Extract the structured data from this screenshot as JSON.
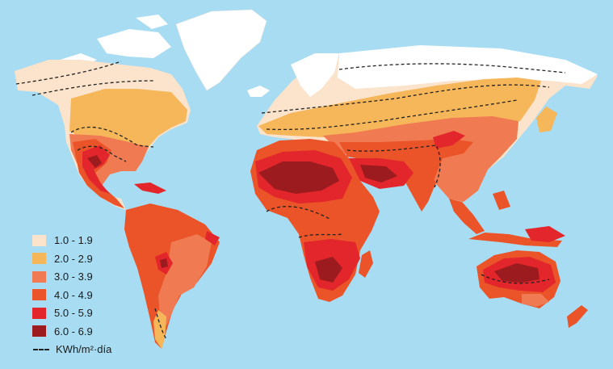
{
  "colors": {
    "ocean": "#a8dcf2",
    "land_outline": "#ffffff",
    "isoline": "#222222"
  },
  "legend": {
    "items": [
      {
        "label": "1.0 - 1.9",
        "color": "#fbe3cc"
      },
      {
        "label": "2.0 - 2.9",
        "color": "#f6b65a"
      },
      {
        "label": "3.0 - 3.9",
        "color": "#f07a52"
      },
      {
        "label": "4.0 - 4.9",
        "color": "#eb5428"
      },
      {
        "label": "5.0 - 5.9",
        "color": "#e2262b"
      },
      {
        "label": "6.0 - 6.9",
        "color": "#9c1b1e"
      }
    ],
    "isoline_label": "KWh/m²·día"
  }
}
